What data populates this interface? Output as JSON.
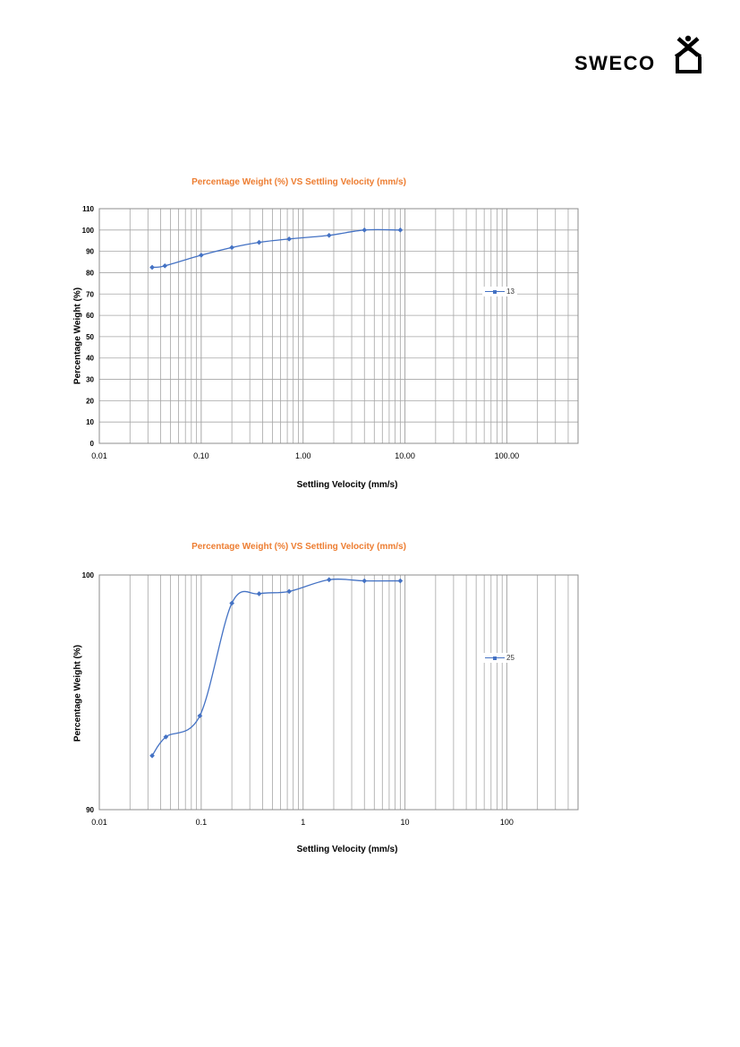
{
  "logo": {
    "text": "SWECO"
  },
  "colors": {
    "series": "#4472C4",
    "title": "#ED7D31",
    "grid": "#A6A6A6"
  },
  "chart_data": [
    {
      "type": "scatter",
      "title": "Percentage Weight (%)  VS  Settling Velocity (mm/s)",
      "xlabel": "Settling Velocity (mm/s)",
      "ylabel": "Percentage Weight (%)",
      "x_scale": "log",
      "xlim": [
        0.01,
        500
      ],
      "ylim": [
        0,
        110
      ],
      "x_ticks": [
        "0.01",
        "0.10",
        "1.00",
        "10.00",
        "100.00"
      ],
      "y_ticks": [
        "0",
        "10",
        "20",
        "30",
        "40",
        "50",
        "60",
        "70",
        "80",
        "90",
        "100",
        "110"
      ],
      "grid": true,
      "legend_position": "right",
      "series": [
        {
          "name": "13",
          "x": [
            0.033,
            0.044,
            0.1,
            0.2,
            0.37,
            0.73,
            1.8,
            4.0,
            9.0
          ],
          "y": [
            82.5,
            83.2,
            88.2,
            91.8,
            94.2,
            95.8,
            97.5,
            100.0,
            100.0
          ]
        }
      ]
    },
    {
      "type": "scatter",
      "title": "Percentage Weight (%)  VS  Settling Velocity (mm/s)",
      "xlabel": "Settling Velocity (mm/s)",
      "ylabel": "Percentage Weight (%)",
      "x_scale": "log",
      "xlim": [
        0.01,
        500
      ],
      "ylim": [
        90,
        100
      ],
      "x_ticks": [
        "0.01",
        "0.1",
        "1",
        "10",
        "100"
      ],
      "y_ticks": [
        "90",
        "100"
      ],
      "grid": true,
      "legend_position": "right",
      "series": [
        {
          "name": "25",
          "x": [
            0.033,
            0.045,
            0.097,
            0.2,
            0.37,
            0.73,
            1.8,
            4.0,
            9.0
          ],
          "y": [
            92.3,
            93.1,
            94.0,
            98.8,
            99.2,
            99.3,
            99.8,
            99.75,
            99.75
          ]
        }
      ]
    }
  ]
}
